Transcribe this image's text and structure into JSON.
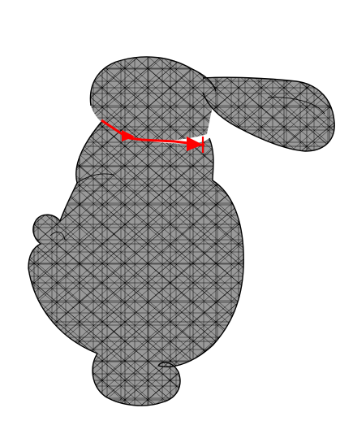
{
  "scene": {
    "background_color": "#ffffff",
    "mesh": {
      "subject": "stanford-bunny",
      "fill_color": "#999999",
      "edge_color": "#000000",
      "style": "triangulated-wireframe-over-flat-fill"
    },
    "highlight_path": {
      "color": "#ff0000",
      "location": "neck",
      "markers": 2
    }
  }
}
